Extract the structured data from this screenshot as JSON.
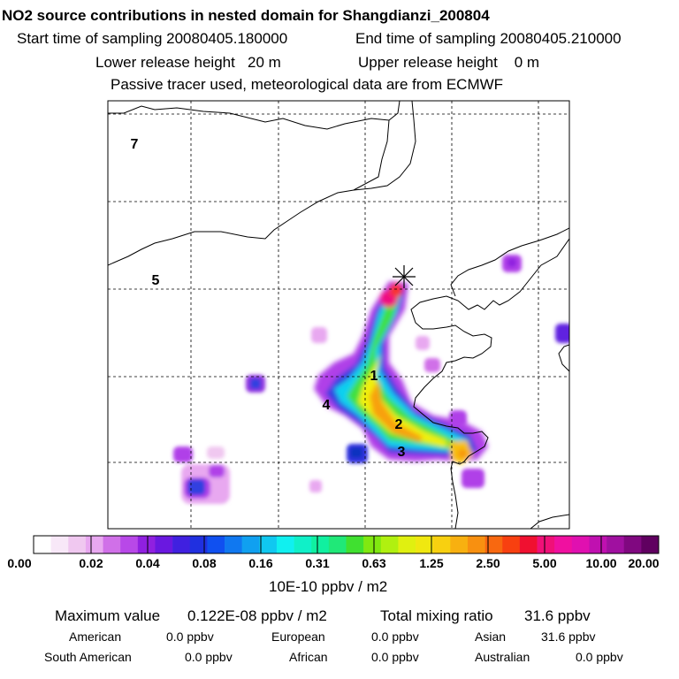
{
  "header": {
    "title": "NO2 source contributions in nested domain for Shangdianzi_200804",
    "start_label": "Start time of sampling 20080405.180000",
    "end_label": "End time of sampling 20080405.210000",
    "lower_label": "Lower release height   20 m",
    "upper_label": "Upper release height    0 m",
    "tracer_label": "Passive tracer used, meteorological data are from ECMWF"
  },
  "map": {
    "region_labels": [
      "7",
      "5",
      "1",
      "4",
      "2",
      "3"
    ],
    "release_site": "Shangdianzi"
  },
  "colorbar": {
    "tick_labels": [
      "0.00",
      "0.02",
      "0.04",
      "0.08",
      "0.16",
      "0.31",
      "0.63",
      "1.25",
      "2.50",
      "5.00",
      "10.00",
      "20.00"
    ],
    "unit": "10E-10 ppbv / m2",
    "colors": [
      "#ffffff",
      "#f8e8f8",
      "#f0c8f0",
      "#e8a8f0",
      "#d070e8",
      "#b848e8",
      "#9020e0",
      "#6a18e0",
      "#4020e0",
      "#2030e0",
      "#1050f0",
      "#1078f0",
      "#10a0f0",
      "#10c8f0",
      "#10f0f0",
      "#10f0c8",
      "#10f0a0",
      "#20e878",
      "#40e030",
      "#80e810",
      "#b0f010",
      "#e0f010",
      "#f0e810",
      "#f8d010",
      "#f8b010",
      "#f89010",
      "#f86810",
      "#f84010",
      "#f01030",
      "#f01078",
      "#f010a0",
      "#e010b0",
      "#c010b0",
      "#a010a0",
      "#800880",
      "#600060"
    ]
  },
  "stats": {
    "max_label": "Maximum value",
    "max_value": "0.122E-08 ppbv / m2",
    "total_label": "Total mixing ratio",
    "total_value": "31.6 ppbv",
    "regions": [
      {
        "name": "American",
        "value": "0.0 ppbv"
      },
      {
        "name": "European",
        "value": "0.0 ppbv"
      },
      {
        "name": "Asian",
        "value": "31.6 ppbv"
      },
      {
        "name": "South American",
        "value": "0.0 ppbv"
      },
      {
        "name": "African",
        "value": "0.0 ppbv"
      },
      {
        "name": "Australian",
        "value": "0.0 ppbv"
      }
    ]
  }
}
